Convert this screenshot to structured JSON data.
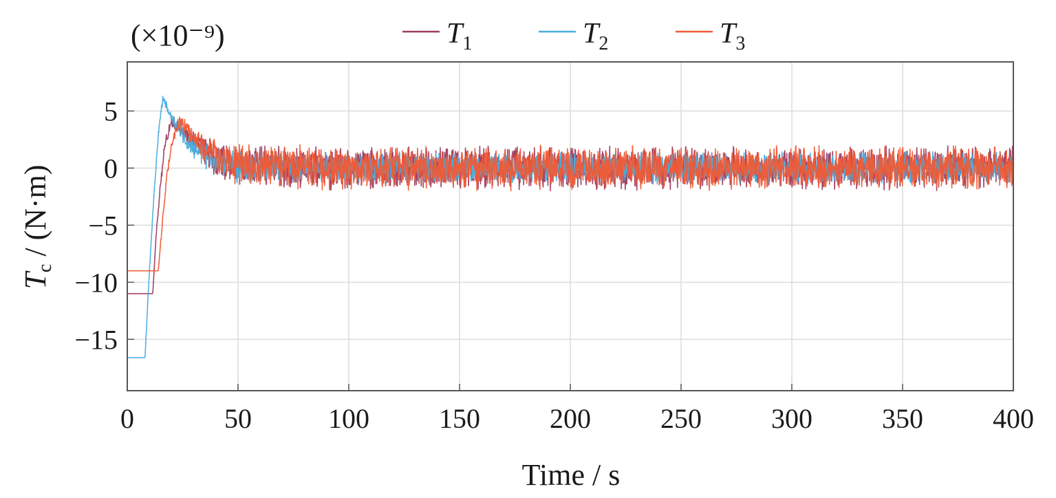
{
  "chart_data": {
    "type": "line",
    "title": "",
    "scale_note": "(×10⁻⁹)",
    "xlabel": "Time / s",
    "ylabel_main": "T",
    "ylabel_sub": "c",
    "ylabel_unit": " / (N·m)",
    "xlim": [
      0,
      400
    ],
    "ylim": [
      -19.5,
      9.3
    ],
    "xticks": [
      0,
      50,
      100,
      150,
      200,
      250,
      300,
      350,
      400
    ],
    "yticks": [
      -15,
      -10,
      -5,
      0,
      5
    ],
    "ytick_labels": [
      "−15",
      "−10",
      "−5",
      "0",
      "5"
    ],
    "grid": true,
    "legend_position": "top-center",
    "series": [
      {
        "name": "T",
        "name_sub": "1",
        "color": "#9e3a5c",
        "initial": -11,
        "step_time": 11.5,
        "peak_time": 20,
        "peak": 4.2,
        "steady_noise": 1.3,
        "x": [
          0,
          11.5,
          13,
          15,
          17,
          20,
          25,
          30,
          40,
          50,
          100,
          150,
          200,
          250,
          300,
          350,
          400
        ],
        "y": [
          -11,
          -11,
          -6,
          -1.5,
          2,
          4.2,
          3.2,
          2.2,
          0.9,
          0.2,
          0,
          0,
          0,
          0,
          0,
          0,
          0
        ]
      },
      {
        "name": "T",
        "name_sub": "2",
        "color": "#4aaee0",
        "initial": -16.6,
        "step_time": 8,
        "peak_time": 16,
        "peak": 6.0,
        "steady_noise": 0.9,
        "x": [
          0,
          8,
          10,
          12,
          14,
          16,
          20,
          25,
          30,
          40,
          50,
          100,
          150,
          200,
          250,
          300,
          350,
          400
        ],
        "y": [
          -16.6,
          -16.6,
          -9,
          -2.5,
          3,
          6.0,
          4.5,
          3,
          1.8,
          0.5,
          0,
          0,
          0,
          0,
          0,
          0,
          0,
          0
        ]
      },
      {
        "name": "T",
        "name_sub": "3",
        "color": "#f05a35",
        "initial": -9,
        "step_time": 14,
        "peak_time": 23,
        "peak": 4.0,
        "steady_noise": 1.3,
        "x": [
          0,
          14,
          16,
          18,
          20,
          23,
          28,
          35,
          45,
          55,
          100,
          150,
          200,
          250,
          300,
          350,
          400
        ],
        "y": [
          -9,
          -9,
          -4.5,
          -0.5,
          2.2,
          4.0,
          3.2,
          1.8,
          0.7,
          0.1,
          0,
          0,
          0,
          0,
          0,
          0,
          0
        ]
      }
    ]
  }
}
